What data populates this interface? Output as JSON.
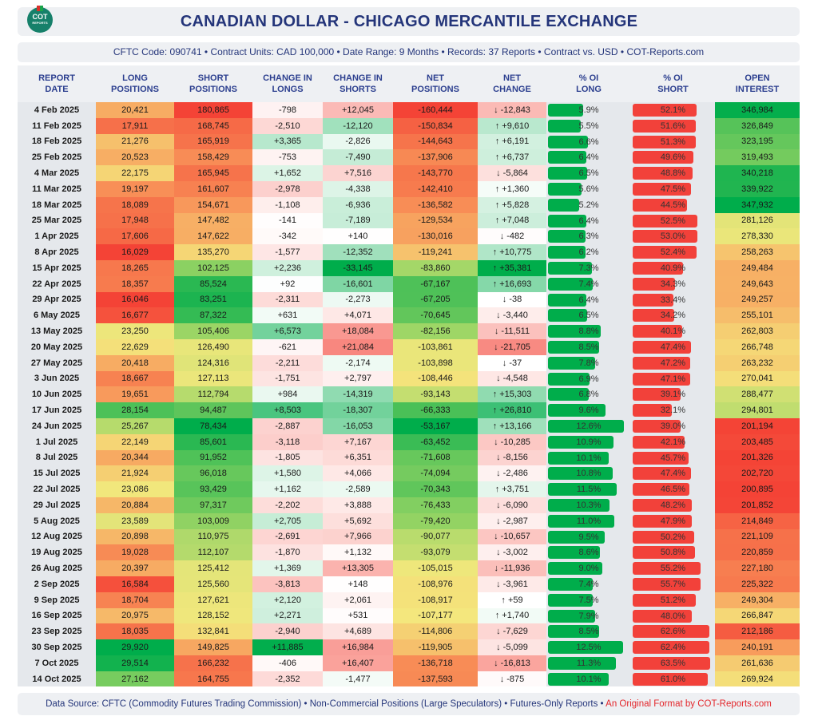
{
  "header": {
    "logo_text": "COT",
    "logo_subtext": "REPORTS",
    "title": "CANADIAN DOLLAR - CHICAGO MERCANTILE EXCHANGE",
    "subtitle": "CFTC Code: 090741 • Contract Units: CAD 100,000 • Date Range: 9 Months • Records: 37 Reports • Contract vs. USD • COT-Reports.com"
  },
  "columns": [
    "REPORT DATE",
    "LONG POSITIONS",
    "SHORT POSITIONS",
    "CHANGE IN LONGS",
    "CHANGE IN SHORTS",
    "NET POSITIONS",
    "NET CHANGE",
    "% OI LONG",
    "% OI SHORT",
    "OPEN INTEREST"
  ],
  "rows": [
    {
      "date": "4 Feb 2025",
      "long": "20,421",
      "short": "180,865",
      "chg_long": "-798",
      "chg_short": "+12,045",
      "net": "-160,444",
      "net_chg": "↓ -12,843",
      "pct_long": "5.9%",
      "pct_short": "52.1%",
      "oi": "346,984"
    },
    {
      "date": "11 Feb 2025",
      "long": "17,911",
      "short": "168,745",
      "chg_long": "-2,510",
      "chg_short": "-12,120",
      "net": "-150,834",
      "net_chg": "↑ +9,610",
      "pct_long": "5.5%",
      "pct_short": "51.6%",
      "oi": "326,849"
    },
    {
      "date": "18 Feb 2025",
      "long": "21,276",
      "short": "165,919",
      "chg_long": "+3,365",
      "chg_short": "-2,826",
      "net": "-144,643",
      "net_chg": "↑ +6,191",
      "pct_long": "6.6%",
      "pct_short": "51.3%",
      "oi": "323,195"
    },
    {
      "date": "25 Feb 2025",
      "long": "20,523",
      "short": "158,429",
      "chg_long": "-753",
      "chg_short": "-7,490",
      "net": "-137,906",
      "net_chg": "↑ +6,737",
      "pct_long": "6.4%",
      "pct_short": "49.6%",
      "oi": "319,493"
    },
    {
      "date": "4 Mar 2025",
      "long": "22,175",
      "short": "165,945",
      "chg_long": "+1,652",
      "chg_short": "+7,516",
      "net": "-143,770",
      "net_chg": "↓ -5,864",
      "pct_long": "6.5%",
      "pct_short": "48.8%",
      "oi": "340,218"
    },
    {
      "date": "11 Mar 2025",
      "long": "19,197",
      "short": "161,607",
      "chg_long": "-2,978",
      "chg_short": "-4,338",
      "net": "-142,410",
      "net_chg": "↑ +1,360",
      "pct_long": "5.6%",
      "pct_short": "47.5%",
      "oi": "339,922"
    },
    {
      "date": "18 Mar 2025",
      "long": "18,089",
      "short": "154,671",
      "chg_long": "-1,108",
      "chg_short": "-6,936",
      "net": "-136,582",
      "net_chg": "↑ +5,828",
      "pct_long": "5.2%",
      "pct_short": "44.5%",
      "oi": "347,932"
    },
    {
      "date": "25 Mar 2025",
      "long": "17,948",
      "short": "147,482",
      "chg_long": "-141",
      "chg_short": "-7,189",
      "net": "-129,534",
      "net_chg": "↑ +7,048",
      "pct_long": "6.4%",
      "pct_short": "52.5%",
      "oi": "281,126"
    },
    {
      "date": "1 Apr 2025",
      "long": "17,606",
      "short": "147,622",
      "chg_long": "-342",
      "chg_short": "+140",
      "net": "-130,016",
      "net_chg": "↓ -482",
      "pct_long": "6.3%",
      "pct_short": "53.0%",
      "oi": "278,330"
    },
    {
      "date": "8 Apr 2025",
      "long": "16,029",
      "short": "135,270",
      "chg_long": "-1,577",
      "chg_short": "-12,352",
      "net": "-119,241",
      "net_chg": "↑ +10,775",
      "pct_long": "6.2%",
      "pct_short": "52.4%",
      "oi": "258,263"
    },
    {
      "date": "15 Apr 2025",
      "long": "18,265",
      "short": "102,125",
      "chg_long": "+2,236",
      "chg_short": "-33,145",
      "net": "-83,860",
      "net_chg": "↑ +35,381",
      "pct_long": "7.3%",
      "pct_short": "40.9%",
      "oi": "249,484"
    },
    {
      "date": "22 Apr 2025",
      "long": "18,357",
      "short": "85,524",
      "chg_long": "+92",
      "chg_short": "-16,601",
      "net": "-67,167",
      "net_chg": "↑ +16,693",
      "pct_long": "7.4%",
      "pct_short": "34.3%",
      "oi": "249,643"
    },
    {
      "date": "29 Apr 2025",
      "long": "16,046",
      "short": "83,251",
      "chg_long": "-2,311",
      "chg_short": "-2,273",
      "net": "-67,205",
      "net_chg": "↓ -38",
      "pct_long": "6.4%",
      "pct_short": "33.4%",
      "oi": "249,257"
    },
    {
      "date": "6 May 2025",
      "long": "16,677",
      "short": "87,322",
      "chg_long": "+631",
      "chg_short": "+4,071",
      "net": "-70,645",
      "net_chg": "↓ -3,440",
      "pct_long": "6.5%",
      "pct_short": "34.2%",
      "oi": "255,101"
    },
    {
      "date": "13 May 2025",
      "long": "23,250",
      "short": "105,406",
      "chg_long": "+6,573",
      "chg_short": "+18,084",
      "net": "-82,156",
      "net_chg": "↓ -11,511",
      "pct_long": "8.8%",
      "pct_short": "40.1%",
      "oi": "262,803"
    },
    {
      "date": "20 May 2025",
      "long": "22,629",
      "short": "126,490",
      "chg_long": "-621",
      "chg_short": "+21,084",
      "net": "-103,861",
      "net_chg": "↓ -21,705",
      "pct_long": "8.5%",
      "pct_short": "47.4%",
      "oi": "266,748"
    },
    {
      "date": "27 May 2025",
      "long": "20,418",
      "short": "124,316",
      "chg_long": "-2,211",
      "chg_short": "-2,174",
      "net": "-103,898",
      "net_chg": "↓ -37",
      "pct_long": "7.8%",
      "pct_short": "47.2%",
      "oi": "263,232"
    },
    {
      "date": "3 Jun 2025",
      "long": "18,667",
      "short": "127,113",
      "chg_long": "-1,751",
      "chg_short": "+2,797",
      "net": "-108,446",
      "net_chg": "↓ -4,548",
      "pct_long": "6.9%",
      "pct_short": "47.1%",
      "oi": "270,041"
    },
    {
      "date": "10 Jun 2025",
      "long": "19,651",
      "short": "112,794",
      "chg_long": "+984",
      "chg_short": "-14,319",
      "net": "-93,143",
      "net_chg": "↑ +15,303",
      "pct_long": "6.8%",
      "pct_short": "39.1%",
      "oi": "288,477"
    },
    {
      "date": "17 Jun 2025",
      "long": "28,154",
      "short": "94,487",
      "chg_long": "+8,503",
      "chg_short": "-18,307",
      "net": "-66,333",
      "net_chg": "↑ +26,810",
      "pct_long": "9.6%",
      "pct_short": "32.1%",
      "oi": "294,801"
    },
    {
      "date": "24 Jun 2025",
      "long": "25,267",
      "short": "78,434",
      "chg_long": "-2,887",
      "chg_short": "-16,053",
      "net": "-53,167",
      "net_chg": "↑ +13,166",
      "pct_long": "12.6%",
      "pct_short": "39.0%",
      "oi": "201,194"
    },
    {
      "date": "1 Jul 2025",
      "long": "22,149",
      "short": "85,601",
      "chg_long": "-3,118",
      "chg_short": "+7,167",
      "net": "-63,452",
      "net_chg": "↓ -10,285",
      "pct_long": "10.9%",
      "pct_short": "42.1%",
      "oi": "203,485"
    },
    {
      "date": "8 Jul 2025",
      "long": "20,344",
      "short": "91,952",
      "chg_long": "-1,805",
      "chg_short": "+6,351",
      "net": "-71,608",
      "net_chg": "↓ -8,156",
      "pct_long": "10.1%",
      "pct_short": "45.7%",
      "oi": "201,326"
    },
    {
      "date": "15 Jul 2025",
      "long": "21,924",
      "short": "96,018",
      "chg_long": "+1,580",
      "chg_short": "+4,066",
      "net": "-74,094",
      "net_chg": "↓ -2,486",
      "pct_long": "10.8%",
      "pct_short": "47.4%",
      "oi": "202,720"
    },
    {
      "date": "22 Jul 2025",
      "long": "23,086",
      "short": "93,429",
      "chg_long": "+1,162",
      "chg_short": "-2,589",
      "net": "-70,343",
      "net_chg": "↑ +3,751",
      "pct_long": "11.5%",
      "pct_short": "46.5%",
      "oi": "200,895"
    },
    {
      "date": "29 Jul 2025",
      "long": "20,884",
      "short": "97,317",
      "chg_long": "-2,202",
      "chg_short": "+3,888",
      "net": "-76,433",
      "net_chg": "↓ -6,090",
      "pct_long": "10.3%",
      "pct_short": "48.2%",
      "oi": "201,852"
    },
    {
      "date": "5 Aug 2025",
      "long": "23,589",
      "short": "103,009",
      "chg_long": "+2,705",
      "chg_short": "+5,692",
      "net": "-79,420",
      "net_chg": "↓ -2,987",
      "pct_long": "11.0%",
      "pct_short": "47.9%",
      "oi": "214,849"
    },
    {
      "date": "12 Aug 2025",
      "long": "20,898",
      "short": "110,975",
      "chg_long": "-2,691",
      "chg_short": "+7,966",
      "net": "-90,077",
      "net_chg": "↓ -10,657",
      "pct_long": "9.5%",
      "pct_short": "50.2%",
      "oi": "221,109"
    },
    {
      "date": "19 Aug 2025",
      "long": "19,028",
      "short": "112,107",
      "chg_long": "-1,870",
      "chg_short": "+1,132",
      "net": "-93,079",
      "net_chg": "↓ -3,002",
      "pct_long": "8.6%",
      "pct_short": "50.8%",
      "oi": "220,859"
    },
    {
      "date": "26 Aug 2025",
      "long": "20,397",
      "short": "125,412",
      "chg_long": "+1,369",
      "chg_short": "+13,305",
      "net": "-105,015",
      "net_chg": "↓ -11,936",
      "pct_long": "9.0%",
      "pct_short": "55.2%",
      "oi": "227,180"
    },
    {
      "date": "2 Sep 2025",
      "long": "16,584",
      "short": "125,560",
      "chg_long": "-3,813",
      "chg_short": "+148",
      "net": "-108,976",
      "net_chg": "↓ -3,961",
      "pct_long": "7.4%",
      "pct_short": "55.7%",
      "oi": "225,322"
    },
    {
      "date": "9 Sep 2025",
      "long": "18,704",
      "short": "127,621",
      "chg_long": "+2,120",
      "chg_short": "+2,061",
      "net": "-108,917",
      "net_chg": "↑ +59",
      "pct_long": "7.5%",
      "pct_short": "51.2%",
      "oi": "249,304"
    },
    {
      "date": "16 Sep 2025",
      "long": "20,975",
      "short": "128,152",
      "chg_long": "+2,271",
      "chg_short": "+531",
      "net": "-107,177",
      "net_chg": "↑ +1,740",
      "pct_long": "7.9%",
      "pct_short": "48.0%",
      "oi": "266,847"
    },
    {
      "date": "23 Sep 2025",
      "long": "18,035",
      "short": "132,841",
      "chg_long": "-2,940",
      "chg_short": "+4,689",
      "net": "-114,806",
      "net_chg": "↓ -7,629",
      "pct_long": "8.5%",
      "pct_short": "62.6%",
      "oi": "212,186"
    },
    {
      "date": "30 Sep 2025",
      "long": "29,920",
      "short": "149,825",
      "chg_long": "+11,885",
      "chg_short": "+16,984",
      "net": "-119,905",
      "net_chg": "↓ -5,099",
      "pct_long": "12.5%",
      "pct_short": "62.4%",
      "oi": "240,191"
    },
    {
      "date": "7 Oct 2025",
      "long": "29,514",
      "short": "166,232",
      "chg_long": "-406",
      "chg_short": "+16,407",
      "net": "-136,718",
      "net_chg": "↓ -16,813",
      "pct_long": "11.3%",
      "pct_short": "63.5%",
      "oi": "261,636"
    },
    {
      "date": "14 Oct 2025",
      "long": "27,162",
      "short": "164,755",
      "chg_long": "-2,352",
      "chg_short": "-1,477",
      "net": "-137,593",
      "net_chg": "↓ -875",
      "pct_long": "10.1%",
      "pct_short": "61.0%",
      "oi": "269,924"
    }
  ],
  "footer": {
    "source": "Data Source: CFTC (Commodity Futures Trading Commission) • Non-Commercial Positions (Large Speculators) • Futures-Only Reports • ",
    "credit": "An Original Format by COT-Reports.com"
  },
  "colors": {
    "title": "#24357a",
    "bar_long": "#00ad4b",
    "bar_short": "#f2413a",
    "credit": "#e3262b"
  }
}
